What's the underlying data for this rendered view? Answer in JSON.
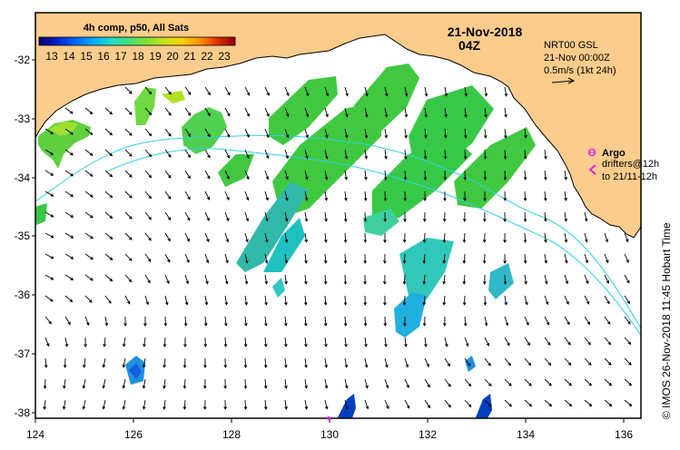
{
  "map": {
    "colorbar_title": "4h comp, p50, All Sats",
    "colorbar_ticks": [
      "13",
      "14",
      "15",
      "16",
      "17",
      "18",
      "19",
      "20",
      "21",
      "22",
      "23"
    ],
    "colorbar_colors": [
      "#08006e",
      "#0020c8",
      "#0060ff",
      "#00a8ff",
      "#20d8d0",
      "#40e080",
      "#80e030",
      "#c8e020",
      "#ffd000",
      "#ff7000",
      "#d01000",
      "#900000"
    ],
    "date": "21-Nov-2018",
    "hour": "04Z",
    "current_legend": {
      "line1": "NRT00 GSL",
      "line2": "21-Nov 00:00Z",
      "line3": "0.5m/s (1kt 24h)"
    },
    "drifter_legend": {
      "argo": "Argo",
      "drifters": "drifters@12h",
      "range": "to 21/11-12h"
    },
    "side_label": "© IMOS 26-Nov-2018 11:45 Hobart Time",
    "lat_labels": [
      "-32",
      "-33",
      "-34",
      "-35",
      "-36",
      "-37",
      "-38"
    ],
    "lon_labels": [
      "124",
      "126",
      "128",
      "130",
      "132",
      "134",
      "136"
    ],
    "lon_range": [
      124,
      136.5
    ],
    "lat_range": [
      -38.2,
      -31.4
    ],
    "colors": {
      "land": "#fccc8c",
      "arrow": "#000000",
      "contour": "#30d0e8",
      "argo": "#e020e0"
    }
  }
}
